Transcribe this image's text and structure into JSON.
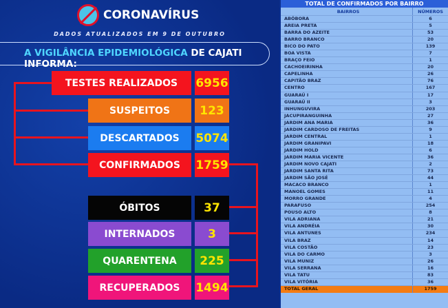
{
  "header": {
    "brand": "CORONAVÍRUS",
    "updated": "DADOS ATUALIZADOS EM 9 DE OUTUBRO",
    "banner_highlight": "A VIGILÂNCIA EPIDEMIOLÓGICA",
    "banner_rest": " DE CAJATI INFORMA:",
    "logo_icon": "no-virus-icon"
  },
  "stats": [
    {
      "label": "TESTES REALIZADOS",
      "value": "6956",
      "color": "#f4141e"
    },
    {
      "label": "SUSPEITOS",
      "value": "123",
      "color": "#f07416"
    },
    {
      "label": "DESCARTADOS",
      "value": "5074",
      "color": "#1b7cf0"
    },
    {
      "label": "CONFIRMADOS",
      "value": "1759",
      "color": "#f4141e"
    },
    {
      "label": "ÓBITOS",
      "value": "37",
      "color": "#050505"
    },
    {
      "label": "INTERNADOS",
      "value": "3",
      "color": "#8a4bd0"
    },
    {
      "label": "QUARENTENA",
      "value": "225",
      "color": "#22a12a"
    },
    {
      "label": "RECUPERADOS",
      "value": "1494",
      "color": "#f0157a"
    }
  ],
  "table": {
    "title": "TOTAL DE CONFIRMADOS POR BAIRRO",
    "col_name": "BAIRROS",
    "col_num": "NÚMEROS",
    "rows": [
      [
        "ABÓBORA",
        "6"
      ],
      [
        "AREIA PRETA",
        "5"
      ],
      [
        "BARRA DO AZEITE",
        "53"
      ],
      [
        "BARRO BRANCO",
        "20"
      ],
      [
        "BICO DO PATO",
        "139"
      ],
      [
        "BOA VISTA",
        "7"
      ],
      [
        "BRAÇO FEIO",
        "1"
      ],
      [
        "CACHOEIRINHA",
        "20"
      ],
      [
        "CAPELINHA",
        "26"
      ],
      [
        "CAPITÃO BRAZ",
        "76"
      ],
      [
        "CENTRO",
        "167"
      ],
      [
        "GUARAÚ I",
        "17"
      ],
      [
        "GUARAÚ II",
        "3"
      ],
      [
        "INHUNGUVIRA",
        "203"
      ],
      [
        "JACUPIRANGUINHA",
        "27"
      ],
      [
        "JARDIM ANA MARIA",
        "36"
      ],
      [
        "JARDIM CARDOSO DE FREITAS",
        "9"
      ],
      [
        "JARDIM CENTRAL",
        "1"
      ],
      [
        "JARDIM GRANIPAVI",
        "18"
      ],
      [
        "JARDIM HOLD",
        "6"
      ],
      [
        "JARDIM MARIA VICENTE",
        "36"
      ],
      [
        "JARDIM NOVO CAJATI",
        "2"
      ],
      [
        "JARDIM SANTA RITA",
        "73"
      ],
      [
        "JARDIM SÃO JOSÉ",
        "44"
      ],
      [
        "MACACO BRANCO",
        "1"
      ],
      [
        "MANOEL GOMES",
        "11"
      ],
      [
        "MORRO GRANDE",
        "4"
      ],
      [
        "PARAFUSO",
        "254"
      ],
      [
        "POUSO ALTO",
        "8"
      ],
      [
        "VILA ADRIANA",
        "21"
      ],
      [
        "VILA ANDRÉIA",
        "30"
      ],
      [
        "VILA ANTUNES",
        "234"
      ],
      [
        "VILA BRAZ",
        "14"
      ],
      [
        "VILA COSTÃO",
        "23"
      ],
      [
        "VILA DO CARMO",
        "3"
      ],
      [
        "VILA MUNIZ",
        "26"
      ],
      [
        "VILA SERRANA",
        "16"
      ],
      [
        "VILA TATU",
        "83"
      ],
      [
        "VILA VITÓRIA",
        "36"
      ]
    ],
    "total_label": "TOTAL GERAL",
    "total_value": "1759"
  }
}
